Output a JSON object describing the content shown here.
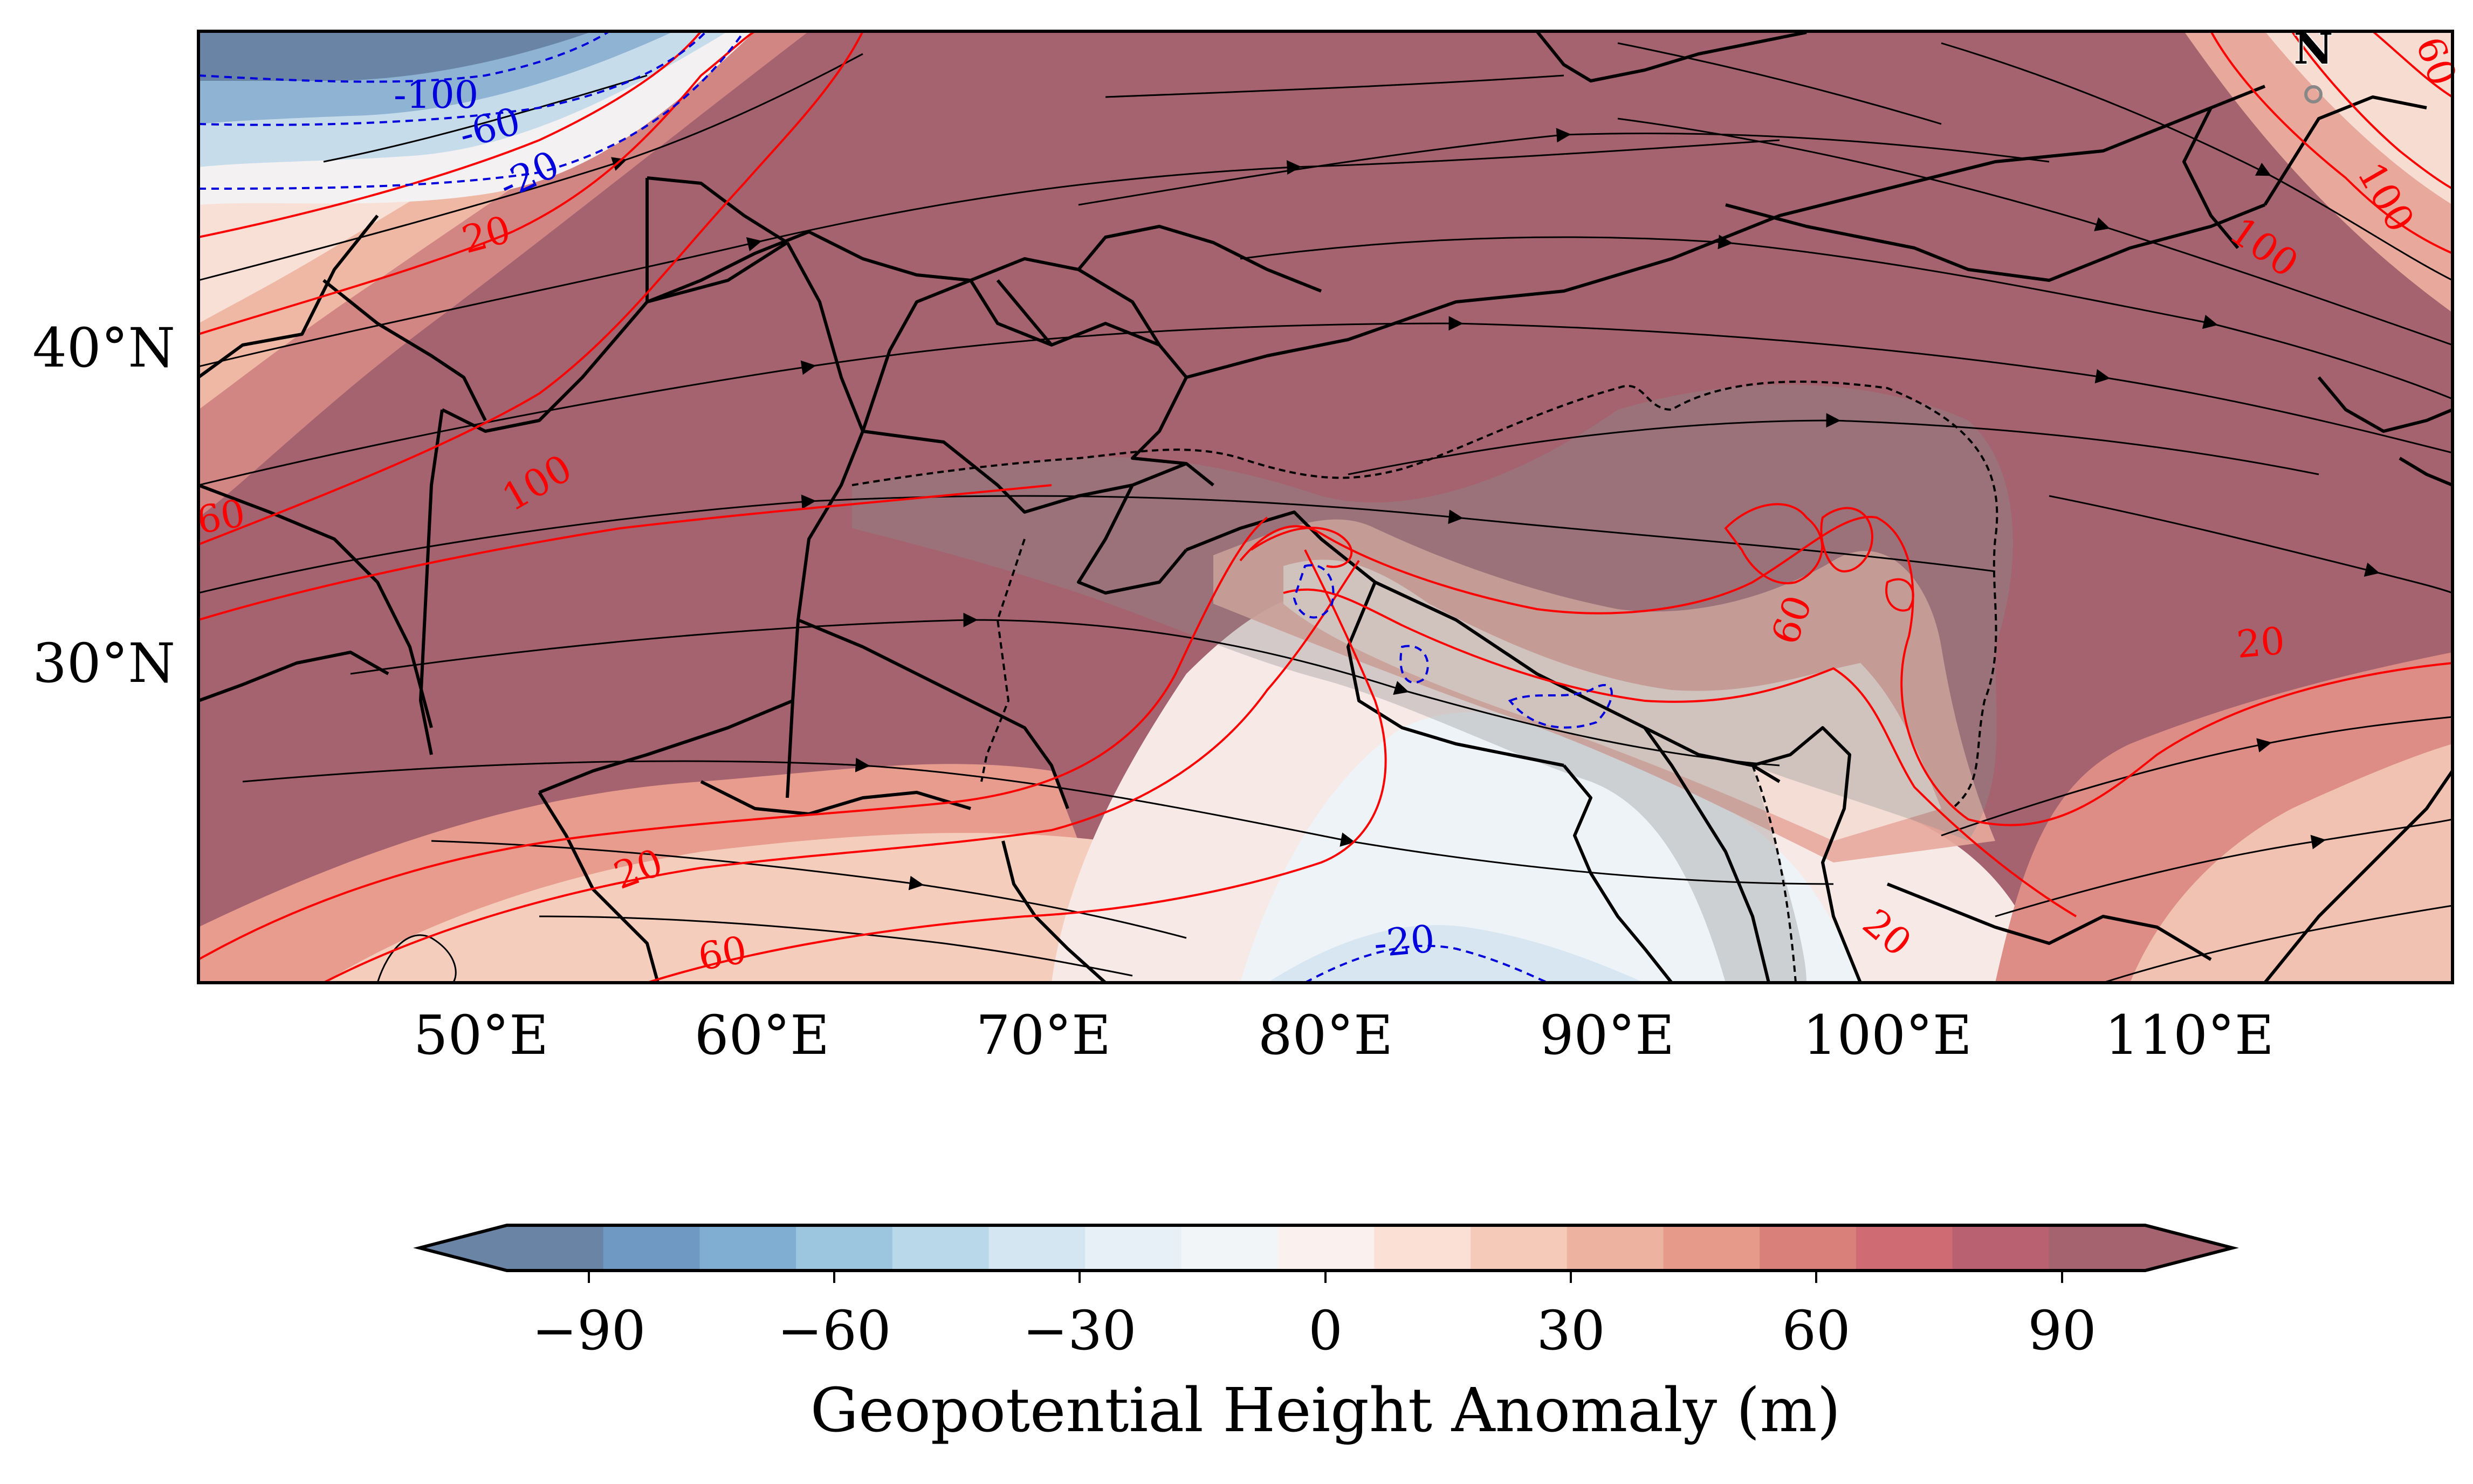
{
  "map": {
    "lat_labels": [
      "40°N",
      "30°N"
    ],
    "lon_labels": [
      "50°E",
      "60°E",
      "70°E",
      "80°E",
      "90°E",
      "100°E",
      "110°E"
    ],
    "north_arrow": "N",
    "contour_labels_positive": [
      "20",
      "60",
      "100",
      "20",
      "60",
      "100",
      "100",
      "60",
      "20",
      "60",
      "20",
      "60",
      "100"
    ],
    "contour_labels_negative": [
      "-100",
      "-60",
      "-20",
      "-20"
    ]
  },
  "colorbar": {
    "ticks": [
      "−90",
      "−60",
      "−30",
      "0",
      "30",
      "60",
      "90"
    ],
    "label": "Geopotential Height Anomaly (m)",
    "colors": [
      "#6a84a6",
      "#6f98c2",
      "#80aed3",
      "#9cc6e0",
      "#b9d8ea",
      "#d3e6f1",
      "#e6f0f6",
      "#f2f5f8",
      "#faf1ee",
      "#fbe0d5",
      "#f6cab8",
      "#eeb3a0",
      "#e59a8a",
      "#d9807a",
      "#cf6b72",
      "#b96071",
      "#a4636f"
    ]
  },
  "colors": {
    "positive_contour": "#ff0000",
    "negative_contour": "#0000dd",
    "streamline": "#000000",
    "dominant_fill": "#a4636f"
  }
}
